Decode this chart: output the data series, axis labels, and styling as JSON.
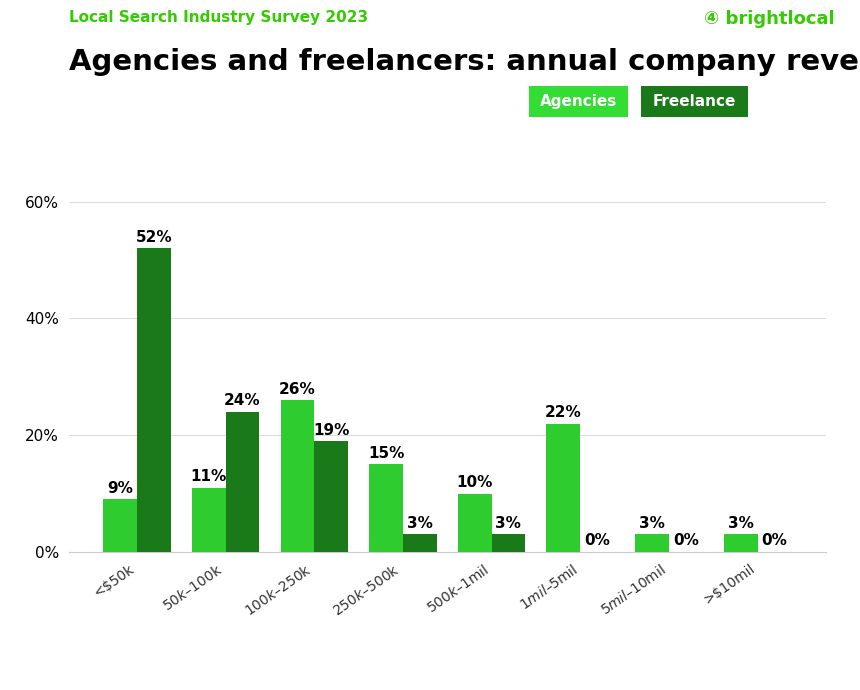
{
  "title": "Agencies and freelancers: annual company revenue (USA $)",
  "subtitle": "Local Search Industry Survey 2023",
  "brand_text": "brightlocal",
  "categories": [
    "<$50k",
    "$50k – $100k",
    "$100k – $250k",
    "$250k – $500k",
    "$500k – $1mil",
    "$1mil – $5mil",
    "$5mil – $10mil",
    ">$10mil"
  ],
  "agencies": [
    9,
    11,
    26,
    15,
    10,
    22,
    3,
    3
  ],
  "freelance": [
    52,
    24,
    19,
    3,
    3,
    0,
    0,
    0
  ],
  "agency_color": "#2ecc2e",
  "freelance_color": "#1a7a1a",
  "ylim": [
    0,
    65
  ],
  "yticks": [
    0,
    20,
    40,
    60
  ],
  "ytick_labels": [
    "0%",
    "20%",
    "40%",
    "60%"
  ],
  "bar_width": 0.38,
  "title_fontsize": 21,
  "subtitle_fontsize": 11,
  "subtitle_color": "#33cc00",
  "brand_color": "#33cc00",
  "label_fontsize": 11,
  "tick_fontsize": 10,
  "background_color": "#ffffff",
  "legend_agency_color": "#33dd33",
  "legend_freelance_color": "#1a7a1a"
}
